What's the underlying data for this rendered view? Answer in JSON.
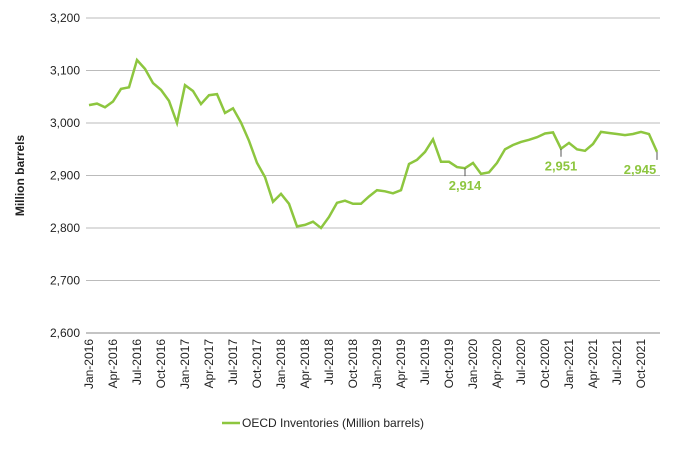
{
  "chart_data": {
    "type": "line",
    "y_label": "Million barrels",
    "categories": [
      "Jan-2016",
      null,
      null,
      "Apr-2016",
      null,
      null,
      "Jul-2016",
      null,
      null,
      "Oct-2016",
      null,
      null,
      "Jan-2017",
      null,
      null,
      "Apr-2017",
      null,
      null,
      "Jul-2017",
      null,
      null,
      "Oct-2017",
      null,
      null,
      "Jan-2018",
      null,
      null,
      "Apr-2018",
      null,
      null,
      "Jul-2018",
      null,
      null,
      "Oct-2018",
      null,
      null,
      "Jan-2019",
      null,
      null,
      "Apr-2019",
      null,
      null,
      "Jul-2019",
      null,
      null,
      "Oct-2019",
      null,
      null,
      "Jan-2020",
      null,
      null,
      "Apr-2020",
      null,
      null,
      "Jul-2020",
      null,
      null,
      "Oct-2020",
      null,
      null,
      "Jan-2021",
      null,
      null,
      "Apr-2021",
      null,
      null,
      "Jul-2021",
      null,
      null,
      "Oct-2021",
      null,
      null
    ],
    "series": [
      {
        "name": "OECD Inventories (Million barrels)",
        "color": "#8dc63f",
        "values": [
          3034,
          3037,
          3030,
          3041,
          3065,
          3068,
          3120,
          3103,
          3076,
          3063,
          3042,
          3000,
          3072,
          3061,
          3036,
          3053,
          3055,
          3019,
          3028,
          3001,
          2966,
          2924,
          2897,
          2850,
          2865,
          2846,
          2803,
          2806,
          2812,
          2800,
          2821,
          2848,
          2852,
          2846,
          2846,
          2860,
          2872,
          2870,
          2866,
          2872,
          2922,
          2930,
          2945,
          2969,
          2926,
          2926,
          2916,
          2914,
          2924,
          2903,
          2906,
          2924,
          2950,
          2958,
          2964,
          2968,
          2973,
          2980,
          2982,
          2951,
          2962,
          2950,
          2947,
          2960,
          2983,
          2981,
          2979,
          2977,
          2979,
          2983,
          2979,
          2945
        ],
        "value_labels": [
          null,
          null,
          null,
          null,
          null,
          null,
          null,
          null,
          null,
          null,
          null,
          null,
          null,
          null,
          null,
          null,
          null,
          null,
          null,
          null,
          null,
          null,
          null,
          null,
          null,
          null,
          null,
          null,
          null,
          null,
          null,
          null,
          null,
          null,
          null,
          null,
          null,
          null,
          null,
          null,
          null,
          null,
          null,
          null,
          null,
          null,
          null,
          "2,914",
          null,
          null,
          null,
          null,
          null,
          null,
          null,
          null,
          null,
          null,
          null,
          "2,951",
          null,
          null,
          null,
          null,
          null,
          null,
          null,
          null,
          null,
          null,
          null,
          "2,945"
        ]
      }
    ],
    "ylim": [
      2600,
      3200
    ],
    "yticks": [
      {
        "value": 2600,
        "label": "2,600"
      },
      {
        "value": 2700,
        "label": "2,700"
      },
      {
        "value": 2800,
        "label": "2,800"
      },
      {
        "value": 2900,
        "label": "2,900"
      },
      {
        "value": 3000,
        "label": "3,000"
      },
      {
        "value": 3100,
        "label": "3,100"
      },
      {
        "value": 3200,
        "label": "3,200"
      }
    ],
    "grid": true,
    "legend": "bottom"
  }
}
